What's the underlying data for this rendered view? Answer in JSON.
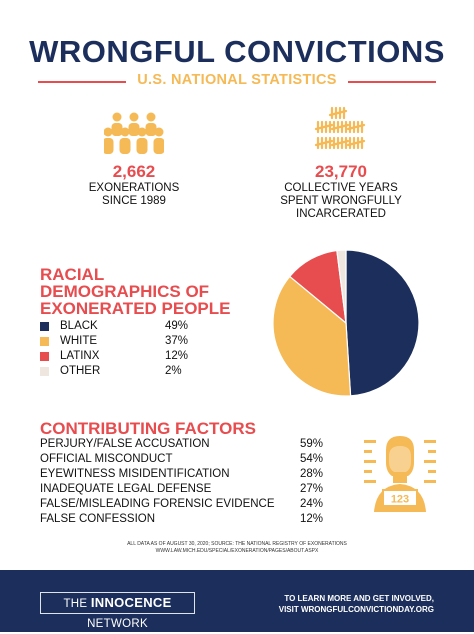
{
  "header": {
    "title": "WRONGFUL CONVICTIONS",
    "subtitle": "U.S. NATIONAL STATISTICS"
  },
  "stats": [
    {
      "number": "2,662",
      "label_lines": [
        "EXONERATIONS",
        "SINCE 1989"
      ],
      "icon": "crowd-icon"
    },
    {
      "number": "23,770",
      "label_lines": [
        "COLLECTIVE YEARS",
        "SPENT WRONGFULLY",
        "INCARCERATED"
      ],
      "icon": "tally-marks-icon"
    }
  ],
  "colors": {
    "navy": "#1c2f5c",
    "red": "#e74c4f",
    "gold": "#f5b955",
    "beige": "#eee6df"
  },
  "chart_data": [
    {
      "type": "pie",
      "title_lines": [
        "RACIAL",
        "DEMOGRAPHICS OF",
        "EXONERATED PEOPLE"
      ],
      "categories": [
        "BLACK",
        "WHITE",
        "LATINX",
        "OTHER"
      ],
      "labels": [
        "49%",
        "37%",
        "12%",
        "2%"
      ],
      "values": [
        49,
        37,
        12,
        2
      ],
      "colors": [
        "#1c2f5c",
        "#f5b955",
        "#e74c4f",
        "#eee6df"
      ],
      "legend": "left"
    },
    {
      "type": "table",
      "title": "CONTRIBUTING FACTORS",
      "categories": [
        "PERJURY/FALSE ACCUSATION",
        "OFFICIAL MISCONDUCT",
        "EYEWITNESS MISIDENTIFICATION",
        "INADEQUATE LEGAL DEFENSE",
        "FALSE/MISLEADING FORENSIC EVIDENCE",
        "FALSE CONFESSION"
      ],
      "labels": [
        "59%",
        "54%",
        "28%",
        "27%",
        "24%",
        "12%"
      ],
      "values": [
        59,
        54,
        28,
        27,
        24,
        12
      ]
    }
  ],
  "mugshot": {
    "icon": "mugshot-icon",
    "plate": "123"
  },
  "source_lines": [
    "ALL DATA AS OF AUGUST 30, 2020; SOURCE: THE NATIONAL REGISTRY OF EXONERATIONS",
    "WWW.LAW.MICH.EDU/SPECIAL/EXONERATION/PAGES/ABOUT.ASPX"
  ],
  "footer": {
    "logo_pre": "THE",
    "logo_main": "INNOCENCE",
    "logo_post": "NETWORK",
    "cta_lines": [
      "TO LEARN MORE AND GET INVOLVED,",
      "VISIT WRONGFULCONVICTIONDAY.ORG"
    ]
  }
}
